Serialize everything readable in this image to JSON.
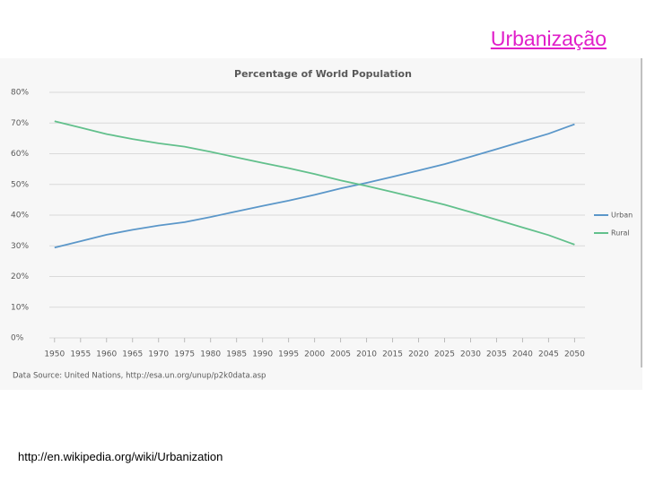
{
  "title": "Urbanização",
  "chart_data": {
    "type": "line",
    "title": "Percentage of World Population",
    "x": [
      1950,
      1955,
      1960,
      1965,
      1970,
      1975,
      1980,
      1985,
      1990,
      1995,
      2000,
      2005,
      2010,
      2015,
      2020,
      2025,
      2030,
      2035,
      2040,
      2045,
      2050
    ],
    "series": [
      {
        "name": "Urban",
        "color": "#5b97c9",
        "values": [
          29.4,
          31.5,
          33.6,
          35.2,
          36.6,
          37.7,
          39.4,
          41.2,
          43.0,
          44.7,
          46.6,
          48.7,
          50.5,
          52.5,
          54.5,
          56.6,
          59.0,
          61.5,
          64.0,
          66.5,
          69.6
        ]
      },
      {
        "name": "Rural",
        "color": "#62c08c",
        "values": [
          70.6,
          68.5,
          66.4,
          64.8,
          63.4,
          62.3,
          60.6,
          58.8,
          57.0,
          55.3,
          53.4,
          51.3,
          49.5,
          47.5,
          45.5,
          43.4,
          41.0,
          38.5,
          36.0,
          33.5,
          30.4
        ]
      }
    ],
    "xlim": [
      1949,
      2052
    ],
    "ylim": [
      0,
      80
    ],
    "yticks": [
      {
        "value": 0,
        "label": "0%"
      },
      {
        "value": 10,
        "label": "10%"
      },
      {
        "value": 20,
        "label": "20%"
      },
      {
        "value": 30,
        "label": "30%"
      },
      {
        "value": 40,
        "label": "40%"
      },
      {
        "value": 50,
        "label": "50%"
      },
      {
        "value": 60,
        "label": "60%"
      },
      {
        "value": 70,
        "label": "70%"
      },
      {
        "value": 80,
        "label": "80%"
      }
    ],
    "grid": true,
    "legend": "right",
    "source": "Data Source: United Nations, http://esa.un.org/unup/p2k0data.asp"
  },
  "footer": "http://en.wikipedia.org/wiki/Urbanization"
}
